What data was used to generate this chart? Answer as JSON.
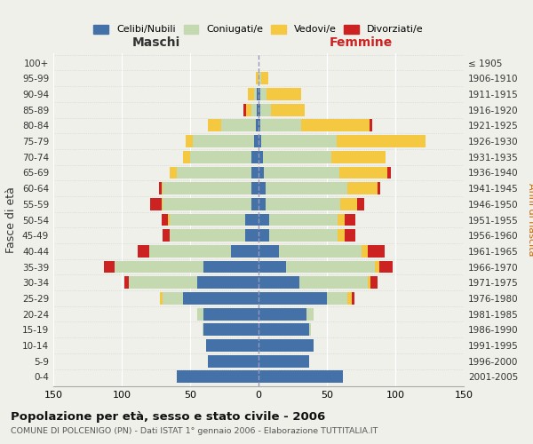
{
  "age_groups": [
    "0-4",
    "5-9",
    "10-14",
    "15-19",
    "20-24",
    "25-29",
    "30-34",
    "35-39",
    "40-44",
    "45-49",
    "50-54",
    "55-59",
    "60-64",
    "65-69",
    "70-74",
    "75-79",
    "80-84",
    "85-89",
    "90-94",
    "95-99",
    "100+"
  ],
  "birth_years": [
    "2001-2005",
    "1996-2000",
    "1991-1995",
    "1986-1990",
    "1981-1985",
    "1976-1980",
    "1971-1975",
    "1966-1970",
    "1961-1965",
    "1956-1960",
    "1951-1955",
    "1946-1950",
    "1941-1945",
    "1936-1940",
    "1931-1935",
    "1926-1930",
    "1921-1925",
    "1916-1920",
    "1911-1915",
    "1906-1910",
    "≤ 1905"
  ],
  "colors": {
    "celibe": "#4472a8",
    "coniugato": "#c5d9b0",
    "vedovo": "#f5c842",
    "divorziato": "#cc2222"
  },
  "maschi": {
    "celibe": [
      60,
      37,
      38,
      40,
      40,
      55,
      45,
      40,
      20,
      10,
      10,
      5,
      5,
      5,
      5,
      3,
      2,
      1,
      1,
      0,
      0
    ],
    "coniugato": [
      0,
      0,
      0,
      1,
      5,
      15,
      50,
      65,
      60,
      55,
      55,
      65,
      65,
      55,
      45,
      45,
      25,
      4,
      2,
      0,
      0
    ],
    "vedovo": [
      0,
      0,
      0,
      0,
      0,
      2,
      0,
      0,
      0,
      0,
      1,
      1,
      1,
      5,
      5,
      5,
      10,
      4,
      5,
      2,
      0
    ],
    "divorziato": [
      0,
      0,
      0,
      0,
      0,
      0,
      3,
      8,
      8,
      5,
      5,
      8,
      2,
      0,
      0,
      0,
      0,
      2,
      0,
      0,
      0
    ]
  },
  "femmine": {
    "nubile": [
      62,
      37,
      40,
      37,
      35,
      50,
      30,
      20,
      15,
      8,
      8,
      5,
      5,
      4,
      3,
      2,
      1,
      1,
      1,
      0,
      0
    ],
    "coniugata": [
      0,
      0,
      0,
      1,
      5,
      15,
      50,
      65,
      60,
      50,
      50,
      55,
      60,
      55,
      50,
      55,
      30,
      8,
      5,
      2,
      0
    ],
    "vedova": [
      0,
      0,
      0,
      0,
      0,
      3,
      2,
      3,
      5,
      5,
      5,
      12,
      22,
      35,
      40,
      65,
      50,
      25,
      25,
      5,
      0
    ],
    "divorziata": [
      0,
      0,
      0,
      0,
      0,
      2,
      5,
      10,
      12,
      8,
      8,
      5,
      2,
      3,
      0,
      0,
      2,
      0,
      0,
      0,
      0
    ]
  },
  "xlim": 150,
  "title_main": "Popolazione per età, sesso e stato civile - 2006",
  "title_sub": "COMUNE DI POLCENIGO (PN) - Dati ISTAT 1° gennaio 2006 - Elaborazione TUTTITALIA.IT",
  "xlabel_left": "Maschi",
  "xlabel_right": "Femmine",
  "ylabel_left": "Fasce di età",
  "ylabel_right": "Anni di nascita",
  "legend_labels": [
    "Celibi/Nubili",
    "Coniugati/e",
    "Vedovi/e",
    "Divorziati/e"
  ],
  "bg_color": "#f0f0eb",
  "plot_bg": "#f0f0eb"
}
